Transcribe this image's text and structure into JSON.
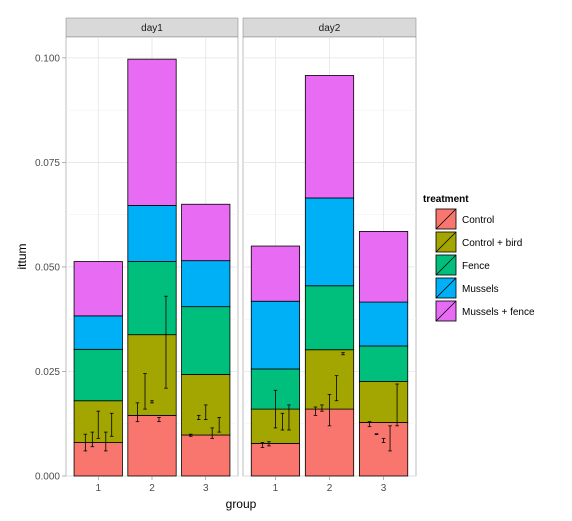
{
  "chart_data": {
    "type": "bar",
    "stacked": true,
    "facets": [
      "day1",
      "day2"
    ],
    "categories": [
      "1",
      "2",
      "3"
    ],
    "xlabel": "group",
    "ylabel": "ittum",
    "ylim": [
      0,
      0.105
    ],
    "yticks": [
      "0.000",
      "0.025",
      "0.050",
      "0.075",
      "0.100"
    ],
    "ytick_values": [
      0,
      0.025,
      0.05,
      0.075,
      0.1
    ],
    "legend": {
      "title": "treatment",
      "position": "right"
    },
    "grid": true,
    "series": [
      {
        "name": "Control",
        "color": "#F8766D",
        "values": {
          "day1": [
            0.008,
            0.0145,
            0.0098
          ],
          "day2": [
            0.0078,
            0.016,
            0.0128
          ]
        }
      },
      {
        "name": "Control + bird",
        "color": "#A3A500",
        "values": {
          "day1": [
            0.01,
            0.0193,
            0.0145
          ],
          "day2": [
            0.0082,
            0.0142,
            0.0098
          ]
        }
      },
      {
        "name": "Fence",
        "color": "#00BF7D",
        "values": {
          "day1": [
            0.0123,
            0.0175,
            0.0162
          ],
          "day2": [
            0.0096,
            0.0153,
            0.0085
          ]
        }
      },
      {
        "name": "Mussels",
        "color": "#00B0F6",
        "values": {
          "day1": [
            0.008,
            0.0134,
            0.011
          ],
          "day2": [
            0.0162,
            0.021,
            0.0105
          ]
        }
      },
      {
        "name": "Mussels + fence",
        "color": "#E76BF3",
        "values": {
          "day1": [
            0.013,
            0.035,
            0.0135
          ],
          "day2": [
            0.0132,
            0.0293,
            0.0169
          ]
        }
      }
    ],
    "error_bars": {
      "day1": [
        {
          "x": 0.76,
          "low": 0.006,
          "high": 0.01
        },
        {
          "x": 0.89,
          "low": 0.007,
          "high": 0.0105
        },
        {
          "x": 1.0,
          "low": 0.009,
          "high": 0.0155
        },
        {
          "x": 1.14,
          "low": 0.006,
          "high": 0.0105
        },
        {
          "x": 1.25,
          "low": 0.0095,
          "high": 0.015
        },
        {
          "x": 1.73,
          "low": 0.013,
          "high": 0.0175
        },
        {
          "x": 1.87,
          "low": 0.016,
          "high": 0.0245
        },
        {
          "x": 2.0,
          "low": 0.0175,
          "high": 0.018
        },
        {
          "x": 2.13,
          "low": 0.013,
          "high": 0.014
        },
        {
          "x": 2.26,
          "low": 0.021,
          "high": 0.043
        },
        {
          "x": 2.72,
          "low": 0.0095,
          "high": 0.01
        },
        {
          "x": 2.87,
          "low": 0.0135,
          "high": 0.0145
        },
        {
          "x": 3.0,
          "low": 0.0135,
          "high": 0.017
        },
        {
          "x": 3.12,
          "low": 0.009,
          "high": 0.0115
        },
        {
          "x": 3.25,
          "low": 0.0105,
          "high": 0.014
        }
      ],
      "day2": [
        {
          "x": 0.76,
          "low": 0.0068,
          "high": 0.008
        },
        {
          "x": 0.88,
          "low": 0.0072,
          "high": 0.0082
        },
        {
          "x": 1.0,
          "low": 0.0115,
          "high": 0.0205
        },
        {
          "x": 1.13,
          "low": 0.011,
          "high": 0.015
        },
        {
          "x": 1.25,
          "low": 0.011,
          "high": 0.017
        },
        {
          "x": 1.74,
          "low": 0.0145,
          "high": 0.0165
        },
        {
          "x": 1.86,
          "low": 0.0155,
          "high": 0.017
        },
        {
          "x": 2.0,
          "low": 0.012,
          "high": 0.0195
        },
        {
          "x": 2.13,
          "low": 0.018,
          "high": 0.024
        },
        {
          "x": 2.25,
          "low": 0.029,
          "high": 0.0295
        },
        {
          "x": 2.74,
          "low": 0.0118,
          "high": 0.013
        },
        {
          "x": 2.87,
          "low": 0.0099,
          "high": 0.0101
        },
        {
          "x": 3.0,
          "low": 0.008,
          "high": 0.009
        },
        {
          "x": 3.12,
          "low": 0.006,
          "high": 0.012
        },
        {
          "x": 3.25,
          "low": 0.012,
          "high": 0.022
        }
      ]
    }
  }
}
